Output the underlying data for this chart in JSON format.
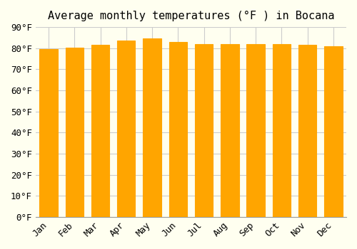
{
  "title": "Average monthly temperatures (°F ) in Bocana",
  "months": [
    "Jan",
    "Feb",
    "Mar",
    "Apr",
    "May",
    "Jun",
    "Jul",
    "Aug",
    "Sep",
    "Oct",
    "Nov",
    "Dec"
  ],
  "values": [
    79.5,
    80.2,
    81.7,
    83.5,
    84.5,
    83.0,
    82.0,
    82.0,
    82.0,
    82.0,
    81.7,
    80.8
  ],
  "bar_color_face": "#FFA500",
  "bar_color_edge": "#D4880A",
  "background_color": "#FFFFF0",
  "grid_color": "#CCCCCC",
  "ylim": [
    0,
    90
  ],
  "yticks": [
    0,
    10,
    20,
    30,
    40,
    50,
    60,
    70,
    80,
    90
  ],
  "ytick_labels": [
    "0°F",
    "10°F",
    "20°F",
    "30°F",
    "40°F",
    "50°F",
    "60°F",
    "70°F",
    "80°F",
    "90°F"
  ],
  "title_fontsize": 11,
  "tick_fontsize": 9
}
